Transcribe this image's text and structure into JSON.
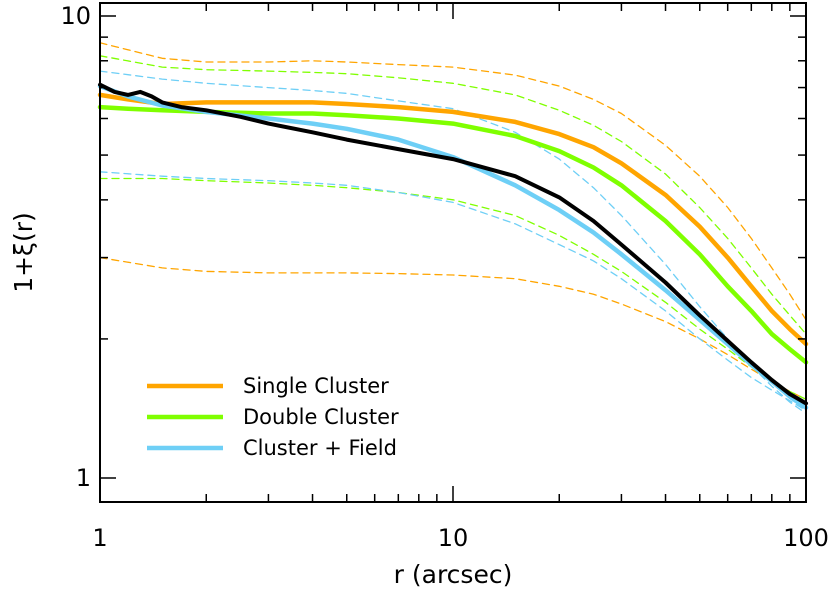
{
  "chart_data": {
    "type": "line",
    "xscale": "log",
    "yscale": "log",
    "xlim": [
      1,
      100
    ],
    "ylim": [
      1,
      10
    ],
    "xlabel": "r (arcsec)",
    "ylabel": "1+ξ(r)",
    "xticks": [
      {
        "value": 1,
        "label": "1"
      },
      {
        "value": 10,
        "label": "10"
      },
      {
        "value": 100,
        "label": "100"
      }
    ],
    "yticks": [
      {
        "value": 1,
        "label": "1"
      },
      {
        "value": 10,
        "label": "10"
      }
    ],
    "legend_position": "bottom-left",
    "series": [
      {
        "name": "Single Cluster",
        "color": "#FFA500",
        "style": "solid",
        "x": [
          1,
          1.2,
          1.5,
          2,
          3,
          4,
          5,
          7,
          10,
          15,
          20,
          25,
          30,
          40,
          50,
          60,
          70,
          80,
          90,
          100
        ],
        "y": [
          6.75,
          6.6,
          6.45,
          6.5,
          6.5,
          6.5,
          6.45,
          6.35,
          6.2,
          5.9,
          5.55,
          5.2,
          4.8,
          4.1,
          3.5,
          3.0,
          2.6,
          2.3,
          2.1,
          1.95
        ]
      },
      {
        "name": "Double Cluster",
        "color": "#7FFF00",
        "style": "solid",
        "x": [
          1,
          1.2,
          1.5,
          2,
          3,
          4,
          5,
          7,
          10,
          15,
          20,
          25,
          30,
          40,
          50,
          60,
          70,
          80,
          90,
          100
        ],
        "y": [
          6.35,
          6.3,
          6.25,
          6.2,
          6.15,
          6.15,
          6.1,
          6.0,
          5.85,
          5.5,
          5.1,
          4.7,
          4.3,
          3.6,
          3.05,
          2.6,
          2.3,
          2.05,
          1.9,
          1.78
        ]
      },
      {
        "name": "Cluster + Field",
        "color": "#6ECFF6",
        "style": "solid",
        "x": [
          1,
          1.2,
          1.5,
          2,
          3,
          4,
          5,
          7,
          10,
          15,
          20,
          25,
          30,
          40,
          50,
          60,
          70,
          80,
          90,
          100
        ],
        "y": [
          7.05,
          6.7,
          6.4,
          6.2,
          6.0,
          5.85,
          5.7,
          5.4,
          4.95,
          4.3,
          3.8,
          3.4,
          3.05,
          2.55,
          2.2,
          1.95,
          1.76,
          1.62,
          1.5,
          1.42
        ]
      },
      {
        "name": "",
        "color": "#000000",
        "style": "solid",
        "x": [
          1,
          1.1,
          1.2,
          1.3,
          1.4,
          1.5,
          1.7,
          2,
          2.5,
          3,
          4,
          5,
          7,
          10,
          15,
          20,
          25,
          30,
          40,
          50,
          60,
          70,
          80,
          90,
          100
        ],
        "y": [
          7.1,
          6.85,
          6.75,
          6.85,
          6.7,
          6.5,
          6.35,
          6.25,
          6.05,
          5.85,
          5.6,
          5.4,
          5.15,
          4.9,
          4.5,
          4.05,
          3.6,
          3.2,
          2.65,
          2.25,
          1.98,
          1.78,
          1.63,
          1.52,
          1.45
        ]
      },
      {
        "name": "",
        "color": "#FFA500",
        "style": "dashed",
        "x": [
          1,
          1.5,
          2,
          3,
          4,
          5,
          7,
          10,
          15,
          20,
          25,
          30,
          40,
          50,
          60,
          70,
          80,
          90,
          100
        ],
        "y": [
          8.75,
          8.1,
          7.95,
          7.95,
          8.0,
          7.95,
          7.85,
          7.75,
          7.45,
          7.05,
          6.6,
          6.15,
          5.25,
          4.5,
          3.85,
          3.3,
          2.85,
          2.5,
          2.2
        ]
      },
      {
        "name": "",
        "color": "#FFA500",
        "style": "dashed",
        "x": [
          1,
          1.5,
          2,
          3,
          4,
          5,
          7,
          10,
          15,
          20,
          25,
          30,
          40,
          50,
          60,
          70,
          80,
          90,
          100
        ],
        "y": [
          3.0,
          2.85,
          2.8,
          2.78,
          2.78,
          2.78,
          2.77,
          2.75,
          2.7,
          2.6,
          2.5,
          2.38,
          2.18,
          2.0,
          1.85,
          1.72,
          1.62,
          1.54,
          1.48
        ]
      },
      {
        "name": "",
        "color": "#7FFF00",
        "style": "dashed",
        "x": [
          1,
          1.5,
          2,
          3,
          4,
          5,
          7,
          10,
          15,
          20,
          25,
          30,
          40,
          50,
          60,
          70,
          80,
          90,
          100
        ],
        "y": [
          8.2,
          7.75,
          7.65,
          7.6,
          7.55,
          7.5,
          7.35,
          7.15,
          6.75,
          6.25,
          5.8,
          5.35,
          4.55,
          3.85,
          3.3,
          2.85,
          2.5,
          2.25,
          2.05
        ]
      },
      {
        "name": "",
        "color": "#7FFF00",
        "style": "dashed",
        "x": [
          1,
          1.5,
          2,
          3,
          4,
          5,
          7,
          10,
          15,
          20,
          25,
          30,
          40,
          50,
          60,
          70,
          80,
          90,
          100
        ],
        "y": [
          4.45,
          4.45,
          4.4,
          4.35,
          4.3,
          4.25,
          4.15,
          4.0,
          3.7,
          3.35,
          3.05,
          2.8,
          2.4,
          2.1,
          1.9,
          1.74,
          1.62,
          1.54,
          1.48
        ]
      },
      {
        "name": "",
        "color": "#6ECFF6",
        "style": "dashed",
        "x": [
          1,
          1.5,
          2,
          3,
          4,
          5,
          7,
          10,
          15,
          20,
          25,
          30,
          40,
          50,
          60,
          70,
          80,
          90,
          100
        ],
        "y": [
          7.6,
          7.3,
          7.15,
          7.0,
          6.9,
          6.8,
          6.55,
          6.3,
          5.6,
          4.9,
          4.25,
          3.7,
          2.9,
          2.35,
          2.0,
          1.75,
          1.58,
          1.46,
          1.38
        ]
      },
      {
        "name": "",
        "color": "#6ECFF6",
        "style": "dashed",
        "x": [
          1,
          1.5,
          2,
          3,
          4,
          5,
          7,
          10,
          15,
          20,
          25,
          30,
          40,
          50,
          60,
          70,
          80,
          90,
          100
        ],
        "y": [
          4.6,
          4.5,
          4.45,
          4.4,
          4.35,
          4.3,
          4.15,
          3.95,
          3.55,
          3.2,
          2.95,
          2.7,
          2.3,
          2.0,
          1.8,
          1.65,
          1.55,
          1.47,
          1.4
        ]
      }
    ]
  }
}
